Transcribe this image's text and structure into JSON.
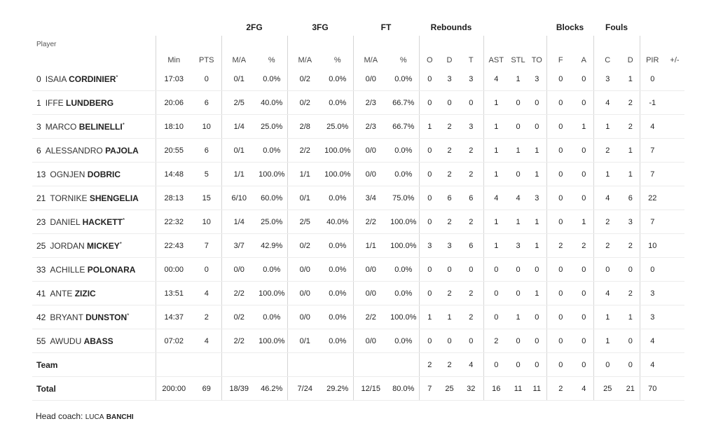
{
  "groups": {
    "fg2": "2FG",
    "fg3": "3FG",
    "ft": "FT",
    "rebounds": "Rebounds",
    "blocks": "Blocks",
    "fouls": "Fouls"
  },
  "columns": {
    "player": "Player",
    "min": "Min",
    "pts": "PTS",
    "fg2_ma": "M/A",
    "fg2_pct": "%",
    "fg3_ma": "M/A",
    "fg3_pct": "%",
    "ft_ma": "M/A",
    "ft_pct": "%",
    "reb_o": "O",
    "reb_d": "D",
    "reb_t": "T",
    "ast": "AST",
    "stl": "STL",
    "to": "TO",
    "blk_f": "F",
    "blk_a": "A",
    "foul_c": "C",
    "foul_d": "D",
    "pir": "PIR",
    "pm": "+/-"
  },
  "players": [
    {
      "num": "0",
      "first": "ISAIA",
      "last": "CORDINIER",
      "star": "*",
      "min": "17:03",
      "pts": "0",
      "fg2": "0/1",
      "fg2p": "0.0%",
      "fg3": "0/2",
      "fg3p": "0.0%",
      "ft": "0/0",
      "ftp": "0.0%",
      "o": "0",
      "d": "3",
      "t": "3",
      "ast": "4",
      "stl": "1",
      "to": "3",
      "bf": "0",
      "ba": "0",
      "fc": "3",
      "fd": "1",
      "pir": "0",
      "pm": ""
    },
    {
      "num": "1",
      "first": "IFFE",
      "last": "LUNDBERG",
      "star": "",
      "min": "20:06",
      "pts": "6",
      "fg2": "2/5",
      "fg2p": "40.0%",
      "fg3": "0/2",
      "fg3p": "0.0%",
      "ft": "2/3",
      "ftp": "66.7%",
      "o": "0",
      "d": "0",
      "t": "0",
      "ast": "1",
      "stl": "0",
      "to": "0",
      "bf": "0",
      "ba": "0",
      "fc": "4",
      "fd": "2",
      "pir": "-1",
      "pm": ""
    },
    {
      "num": "3",
      "first": "MARCO",
      "last": "BELINELLI",
      "star": "*",
      "min": "18:10",
      "pts": "10",
      "fg2": "1/4",
      "fg2p": "25.0%",
      "fg3": "2/8",
      "fg3p": "25.0%",
      "ft": "2/3",
      "ftp": "66.7%",
      "o": "1",
      "d": "2",
      "t": "3",
      "ast": "1",
      "stl": "0",
      "to": "0",
      "bf": "0",
      "ba": "1",
      "fc": "1",
      "fd": "2",
      "pir": "4",
      "pm": ""
    },
    {
      "num": "6",
      "first": "ALESSANDRO",
      "last": "PAJOLA",
      "star": "",
      "min": "20:55",
      "pts": "6",
      "fg2": "0/1",
      "fg2p": "0.0%",
      "fg3": "2/2",
      "fg3p": "100.0%",
      "ft": "0/0",
      "ftp": "0.0%",
      "o": "0",
      "d": "2",
      "t": "2",
      "ast": "1",
      "stl": "1",
      "to": "1",
      "bf": "0",
      "ba": "0",
      "fc": "2",
      "fd": "1",
      "pir": "7",
      "pm": ""
    },
    {
      "num": "13",
      "first": "OGNJEN",
      "last": "DOBRIC",
      "star": "",
      "min": "14:48",
      "pts": "5",
      "fg2": "1/1",
      "fg2p": "100.0%",
      "fg3": "1/1",
      "fg3p": "100.0%",
      "ft": "0/0",
      "ftp": "0.0%",
      "o": "0",
      "d": "2",
      "t": "2",
      "ast": "1",
      "stl": "0",
      "to": "1",
      "bf": "0",
      "ba": "0",
      "fc": "1",
      "fd": "1",
      "pir": "7",
      "pm": ""
    },
    {
      "num": "21",
      "first": "TORNIKE",
      "last": "SHENGELIA",
      "star": "",
      "min": "28:13",
      "pts": "15",
      "fg2": "6/10",
      "fg2p": "60.0%",
      "fg3": "0/1",
      "fg3p": "0.0%",
      "ft": "3/4",
      "ftp": "75.0%",
      "o": "0",
      "d": "6",
      "t": "6",
      "ast": "4",
      "stl": "4",
      "to": "3",
      "bf": "0",
      "ba": "0",
      "fc": "4",
      "fd": "6",
      "pir": "22",
      "pm": ""
    },
    {
      "num": "23",
      "first": "DANIEL",
      "last": "HACKETT",
      "star": "*",
      "min": "22:32",
      "pts": "10",
      "fg2": "1/4",
      "fg2p": "25.0%",
      "fg3": "2/5",
      "fg3p": "40.0%",
      "ft": "2/2",
      "ftp": "100.0%",
      "o": "0",
      "d": "2",
      "t": "2",
      "ast": "1",
      "stl": "1",
      "to": "1",
      "bf": "0",
      "ba": "1",
      "fc": "2",
      "fd": "3",
      "pir": "7",
      "pm": ""
    },
    {
      "num": "25",
      "first": "JORDAN",
      "last": "MICKEY",
      "star": "*",
      "min": "22:43",
      "pts": "7",
      "fg2": "3/7",
      "fg2p": "42.9%",
      "fg3": "0/2",
      "fg3p": "0.0%",
      "ft": "1/1",
      "ftp": "100.0%",
      "o": "3",
      "d": "3",
      "t": "6",
      "ast": "1",
      "stl": "3",
      "to": "1",
      "bf": "2",
      "ba": "2",
      "fc": "2",
      "fd": "2",
      "pir": "10",
      "pm": ""
    },
    {
      "num": "33",
      "first": "ACHILLE",
      "last": "POLONARA",
      "star": "",
      "min": "00:00",
      "pts": "0",
      "fg2": "0/0",
      "fg2p": "0.0%",
      "fg3": "0/0",
      "fg3p": "0.0%",
      "ft": "0/0",
      "ftp": "0.0%",
      "o": "0",
      "d": "0",
      "t": "0",
      "ast": "0",
      "stl": "0",
      "to": "0",
      "bf": "0",
      "ba": "0",
      "fc": "0",
      "fd": "0",
      "pir": "0",
      "pm": ""
    },
    {
      "num": "41",
      "first": "ANTE",
      "last": "ZIZIC",
      "star": "",
      "min": "13:51",
      "pts": "4",
      "fg2": "2/2",
      "fg2p": "100.0%",
      "fg3": "0/0",
      "fg3p": "0.0%",
      "ft": "0/0",
      "ftp": "0.0%",
      "o": "0",
      "d": "2",
      "t": "2",
      "ast": "0",
      "stl": "0",
      "to": "1",
      "bf": "0",
      "ba": "0",
      "fc": "4",
      "fd": "2",
      "pir": "3",
      "pm": ""
    },
    {
      "num": "42",
      "first": "BRYANT",
      "last": "DUNSTON",
      "star": "*",
      "min": "14:37",
      "pts": "2",
      "fg2": "0/2",
      "fg2p": "0.0%",
      "fg3": "0/0",
      "fg3p": "0.0%",
      "ft": "2/2",
      "ftp": "100.0%",
      "o": "1",
      "d": "1",
      "t": "2",
      "ast": "0",
      "stl": "1",
      "to": "0",
      "bf": "0",
      "ba": "0",
      "fc": "1",
      "fd": "1",
      "pir": "3",
      "pm": ""
    },
    {
      "num": "55",
      "first": "AWUDU",
      "last": "ABASS",
      "star": "",
      "min": "07:02",
      "pts": "4",
      "fg2": "2/2",
      "fg2p": "100.0%",
      "fg3": "0/1",
      "fg3p": "0.0%",
      "ft": "0/0",
      "ftp": "0.0%",
      "o": "0",
      "d": "0",
      "t": "0",
      "ast": "2",
      "stl": "0",
      "to": "0",
      "bf": "0",
      "ba": "0",
      "fc": "1",
      "fd": "0",
      "pir": "4",
      "pm": ""
    }
  ],
  "team": {
    "label": "Team",
    "min": "",
    "pts": "",
    "fg2": "",
    "fg2p": "",
    "fg3": "",
    "fg3p": "",
    "ft": "",
    "ftp": "",
    "o": "2",
    "d": "2",
    "t": "4",
    "ast": "0",
    "stl": "0",
    "to": "0",
    "bf": "0",
    "ba": "0",
    "fc": "0",
    "fd": "0",
    "pir": "4",
    "pm": ""
  },
  "total": {
    "label": "Total",
    "min": "200:00",
    "pts": "69",
    "fg2": "18/39",
    "fg2p": "46.2%",
    "fg3": "7/24",
    "fg3p": "29.2%",
    "ft": "12/15",
    "ftp": "80.0%",
    "o": "7",
    "d": "25",
    "t": "32",
    "ast": "16",
    "stl": "11",
    "to": "11",
    "bf": "2",
    "ba": "4",
    "fc": "25",
    "fd": "21",
    "pir": "70",
    "pm": ""
  },
  "coach": {
    "label": "Head coach:",
    "first": "LUCA",
    "last": "BANCHI"
  }
}
